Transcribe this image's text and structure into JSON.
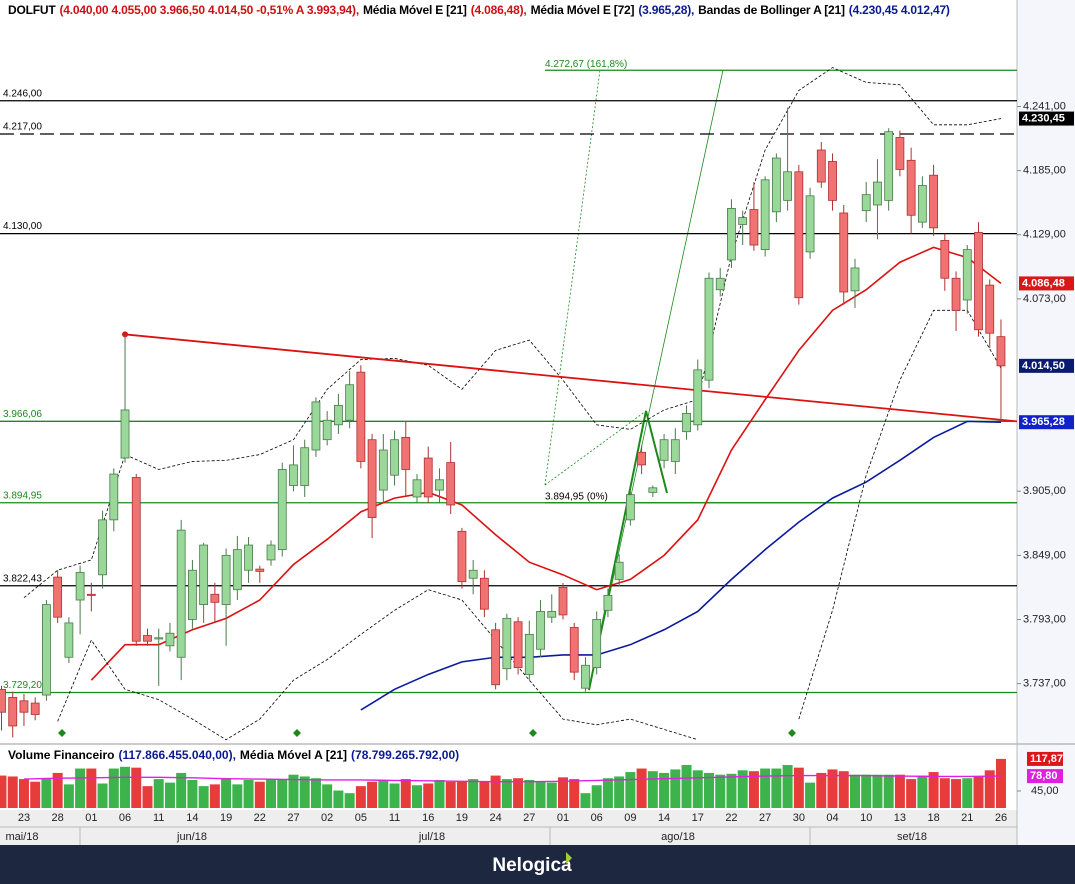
{
  "chart_data": {
    "type": "candlestick",
    "header": [
      {
        "text": "DOLFUT",
        "color": "#000"
      },
      {
        "text": "(4.040,00 4.055,00 3.966,50 4.014,50 -0,51% A 3.993,94),",
        "color": "#d01010"
      },
      {
        "text": "Média Móvel E [21]",
        "color": "#000"
      },
      {
        "text": "(4.086,48),",
        "color": "#d01010"
      },
      {
        "text": "Média Móvel E [72]",
        "color": "#000"
      },
      {
        "text": "(3.965,28),",
        "color": "#0a1a90"
      },
      {
        "text": "Bandas de Bollinger A [21]",
        "color": "#000"
      },
      {
        "text": "(4.230,45  4.012,47)",
        "color": "#0a1a90"
      }
    ],
    "candles": [
      [
        3732,
        3735,
        3696,
        3712
      ],
      [
        3725,
        3730,
        3690,
        3700
      ],
      [
        3722,
        3728,
        3700,
        3712
      ],
      [
        3720,
        3725,
        3705,
        3710
      ],
      [
        3727,
        3810,
        3722,
        3806
      ],
      [
        3830,
        3836,
        3790,
        3795
      ],
      [
        3760,
        3795,
        3755,
        3790
      ],
      [
        3810,
        3840,
        3780,
        3834
      ],
      [
        3815,
        3825,
        3800,
        3814
      ],
      [
        3832,
        3888,
        3820,
        3880
      ],
      [
        3880,
        3925,
        3870,
        3920
      ],
      [
        3934,
        4042,
        3930,
        3976
      ],
      [
        3917,
        3920,
        3770,
        3774
      ],
      [
        3779,
        3785,
        3770,
        3774
      ],
      [
        3776,
        3785,
        3735,
        3777
      ],
      [
        3770,
        3790,
        3765,
        3781
      ],
      [
        3760,
        3880,
        3740,
        3871
      ],
      [
        3793,
        3845,
        3785,
        3836
      ],
      [
        3806,
        3860,
        3790,
        3858
      ],
      [
        3815,
        3825,
        3790,
        3808
      ],
      [
        3806,
        3855,
        3770,
        3849
      ],
      [
        3819,
        3866,
        3810,
        3854
      ],
      [
        3836,
        3865,
        3825,
        3858
      ],
      [
        3837,
        3840,
        3825,
        3835
      ],
      [
        3845,
        3862,
        3840,
        3858
      ],
      [
        3854,
        3930,
        3848,
        3924
      ],
      [
        3910,
        3945,
        3905,
        3928
      ],
      [
        3910,
        3950,
        3900,
        3943
      ],
      [
        3941,
        3987,
        3935,
        3983
      ],
      [
        3950,
        3975,
        3945,
        3967
      ],
      [
        3963,
        3990,
        3955,
        3980
      ],
      [
        3967,
        4010,
        3960,
        3998
      ],
      [
        4009,
        4015,
        3925,
        3931
      ],
      [
        3950,
        3955,
        3864,
        3882
      ],
      [
        3906,
        3955,
        3895,
        3941
      ],
      [
        3919,
        3958,
        3910,
        3950
      ],
      [
        3952,
        3966,
        3900,
        3924
      ],
      [
        3900,
        3920,
        3895,
        3915
      ],
      [
        3934,
        3944,
        3895,
        3900
      ],
      [
        3906,
        3925,
        3895,
        3915
      ],
      [
        3930,
        3948,
        3885,
        3893
      ],
      [
        3870,
        3873,
        3820,
        3826
      ],
      [
        3829,
        3845,
        3815,
        3836
      ],
      [
        3829,
        3836,
        3795,
        3802
      ],
      [
        3784,
        3790,
        3732,
        3736
      ],
      [
        3750,
        3798,
        3740,
        3794
      ],
      [
        3791,
        3795,
        3745,
        3751
      ],
      [
        3745,
        3792,
        3740,
        3780
      ],
      [
        3767,
        3810,
        3760,
        3800
      ],
      [
        3795,
        3815,
        3790,
        3800
      ],
      [
        3821,
        3825,
        3793,
        3797
      ],
      [
        3786,
        3790,
        3740,
        3747
      ],
      [
        3733,
        3760,
        3730,
        3753
      ],
      [
        3751,
        3800,
        3745,
        3793
      ],
      [
        3801,
        3820,
        3795,
        3814
      ],
      [
        3828,
        3850,
        3822,
        3843
      ],
      [
        3880,
        3905,
        3875,
        3902
      ],
      [
        3939,
        3945,
        3920,
        3928
      ],
      [
        3904,
        3910,
        3900,
        3908
      ],
      [
        3932,
        3955,
        3925,
        3950
      ],
      [
        3931,
        3960,
        3920,
        3950
      ],
      [
        3957,
        3980,
        3950,
        3973
      ],
      [
        3963,
        4020,
        3958,
        4011
      ],
      [
        4002,
        4096,
        3995,
        4091
      ],
      [
        4081,
        4100,
        4075,
        4091
      ],
      [
        4107,
        4160,
        4100,
        4152
      ],
      [
        4138,
        4150,
        4120,
        4144
      ],
      [
        4151,
        4175,
        4115,
        4120
      ],
      [
        4116,
        4180,
        4110,
        4177
      ],
      [
        4149,
        4200,
        4140,
        4196
      ],
      [
        4159,
        4240,
        4150,
        4184
      ],
      [
        4184,
        4190,
        4068,
        4074
      ],
      [
        4114,
        4170,
        4108,
        4163
      ],
      [
        4203,
        4210,
        4170,
        4175
      ],
      [
        4193,
        4200,
        4150,
        4159
      ],
      [
        4148,
        4155,
        4068,
        4079
      ],
      [
        4080,
        4108,
        4065,
        4100
      ],
      [
        4150,
        4175,
        4140,
        4164
      ],
      [
        4155,
        4195,
        4125,
        4175
      ],
      [
        4159,
        4222,
        4150,
        4219
      ],
      [
        4214,
        4220,
        4180,
        4186
      ],
      [
        4194,
        4205,
        4130,
        4146
      ],
      [
        4140,
        4180,
        4135,
        4172
      ],
      [
        4181,
        4190,
        4128,
        4135
      ],
      [
        4124,
        4130,
        4080,
        4091
      ],
      [
        4091,
        4097,
        4045,
        4063
      ],
      [
        4072,
        4120,
        4060,
        4116
      ],
      [
        4131,
        4140,
        4040,
        4046
      ],
      [
        4085,
        4090,
        4030,
        4043
      ],
      [
        4040,
        4055,
        3966.5,
        4014.5
      ]
    ],
    "x_labels": [
      "23",
      "28",
      "01",
      "06",
      "11",
      "14",
      "19",
      "22",
      "27",
      "02",
      "05",
      "11",
      "16",
      "19",
      "24",
      "27",
      "01",
      "06",
      "09",
      "14",
      "17",
      "22",
      "27",
      "30",
      "04",
      "10",
      "13",
      "18",
      "21",
      "26"
    ],
    "months": [
      "mai/18",
      "jun/18",
      "jul/18",
      "ago/18",
      "set/18"
    ],
    "ylim": [
      3686,
      4334
    ],
    "yticks": [
      {
        "value": 3737,
        "label": "3.737,00"
      },
      {
        "value": 3793,
        "label": "3.793,00"
      },
      {
        "value": 3849,
        "label": "3.849,00"
      },
      {
        "value": 3905,
        "label": "3.905,00"
      },
      {
        "value": 4073,
        "label": "4.073,00"
      },
      {
        "value": 4129,
        "label": "4.129,00"
      },
      {
        "value": 4185,
        "label": "4.185,00"
      },
      {
        "value": 4241,
        "label": "4.241,00"
      }
    ],
    "levels": [
      {
        "value": 4246,
        "label": "4.246,00",
        "color": "#000",
        "dashed": false
      },
      {
        "value": 4217,
        "label": "4.217,00",
        "color": "#000",
        "dashed": true
      },
      {
        "value": 4130,
        "label": "4.130,00",
        "color": "#000",
        "dashed": false
      },
      {
        "value": 3966.06,
        "label": "3.966,06",
        "color": "#1a8a1a",
        "dashed": false
      },
      {
        "value": 3894.95,
        "label": "3.894,95",
        "color": "#1a8a1a",
        "dashed": false
      },
      {
        "value": 3822.43,
        "label": "3.822,43",
        "color": "#000",
        "dashed": false
      },
      {
        "value": 3729.2,
        "label": "3.729,20",
        "color": "#1a8a1a",
        "dashed": false
      }
    ],
    "fib": [
      {
        "value": 4272.67,
        "label": "4.272,67 (161,8%)",
        "color": "#1a8a1a"
      },
      {
        "value": 3894.95,
        "label": "3.894,95 (0%)",
        "color": "#000"
      }
    ],
    "series": [
      {
        "color": "#dd1111",
        "width": 1.6,
        "dashed": false,
        "values": [
          null,
          null,
          3740,
          3771,
          3771,
          3784,
          3794,
          3810,
          3841,
          3863,
          3887,
          3899,
          3904,
          3893,
          3867,
          3843,
          3832,
          3819,
          3828,
          3849,
          3880,
          3941,
          3985,
          4028,
          4063,
          4081,
          4105,
          4118,
          4109,
          4086.48
        ]
      },
      {
        "color": "#0a1aa0",
        "width": 1.6,
        "dashed": false,
        "values": [
          null,
          null,
          null,
          null,
          null,
          null,
          null,
          null,
          null,
          null,
          3714,
          3732,
          3745,
          3756,
          3760,
          3760,
          3762,
          3762,
          3771,
          3784,
          3800,
          3828,
          3854,
          3878,
          3899,
          3913,
          3932,
          3952,
          3966,
          3965.28
        ]
      },
      {
        "color": "#000",
        "width": 0.8,
        "dashed": true,
        "values": [
          3812,
          3836,
          3845,
          3937,
          3924,
          3931,
          3932,
          3937,
          3950,
          3994,
          4020,
          4021,
          4015,
          3994,
          4028,
          4037,
          4002,
          3963,
          3959,
          3976,
          3985,
          4111,
          4203,
          4255,
          4275,
          4262,
          4260,
          4225,
          4225,
          4230.45
        ]
      },
      {
        "color": "#000",
        "width": 0.8,
        "dashed": true,
        "values": [
          null,
          3704,
          3775,
          3732,
          3723,
          3706,
          3688,
          3706,
          3740,
          3758,
          3780,
          3801,
          3819,
          3810,
          3775,
          3740,
          3706,
          3701,
          3706,
          3697,
          3688,
          null,
          null,
          3706,
          3801,
          3919,
          4002,
          4063,
          4063,
          4012.47
        ]
      }
    ],
    "trendline": {
      "color": "#dd1111",
      "values": [
        4042,
        3966
      ]
    },
    "tags": [
      {
        "value": 4230.45,
        "label": "4.230,45",
        "bg": "#000"
      },
      {
        "value": 4086.48,
        "label": "4.086,48",
        "bg": "#d81818"
      },
      {
        "value": 4014.5,
        "label": "4.014,50",
        "bg": "#0a1a70"
      },
      {
        "value": 3965.28,
        "label": "3.965,28",
        "bg": "#1022c8"
      }
    ],
    "volume": {
      "header": [
        {
          "text": "Volume Financeiro",
          "color": "#000"
        },
        {
          "text": "(117.866.455.040,00),",
          "color": "#0a1a90"
        },
        {
          "text": "Média Móvel A [21]",
          "color": "#000"
        },
        {
          "text": "(78.799.265.792,00)",
          "color": "#0a1a90"
        }
      ],
      "values": [
        80,
        78,
        72,
        66,
        74,
        86,
        60,
        96,
        96,
        62,
        96,
        100,
        98,
        56,
        72,
        64,
        86,
        70,
        56,
        60,
        74,
        60,
        70,
        66,
        72,
        70,
        82,
        78,
        74,
        60,
        46,
        40,
        56,
        66,
        70,
        62,
        72,
        58,
        62,
        70,
        66,
        68,
        72,
        66,
        80,
        72,
        74,
        70,
        66,
        64,
        76,
        72,
        40,
        58,
        74,
        78,
        88,
        96,
        90,
        86,
        94,
        104,
        92,
        86,
        82,
        84,
        92,
        90,
        96,
        96,
        104,
        98,
        64,
        86,
        94,
        90,
        82,
        82,
        82,
        82,
        82,
        72,
        80,
        88,
        74,
        72,
        74,
        78,
        92,
        117.87
      ],
      "ma": {
        "color": "#e020e0",
        "values": [
          72,
          74,
          75,
          76,
          76,
          75,
          73,
          72,
          71,
          70,
          70,
          69,
          68,
          67,
          66,
          66,
          67,
          69,
          71,
          73,
          75,
          77,
          79,
          80,
          80,
          80,
          79,
          78,
          78,
          78.8
        ]
      },
      "ylim": [
        6.3,
        124.5
      ],
      "yticks": [
        {
          "value": 45,
          "label": "45,00"
        }
      ],
      "tags": [
        {
          "value": 117.87,
          "label": "117,87",
          "bg": "#d81818"
        },
        {
          "value": 78.8,
          "label": "78,80",
          "bg": "#e020e0"
        }
      ]
    },
    "brand": "Nelogica"
  }
}
